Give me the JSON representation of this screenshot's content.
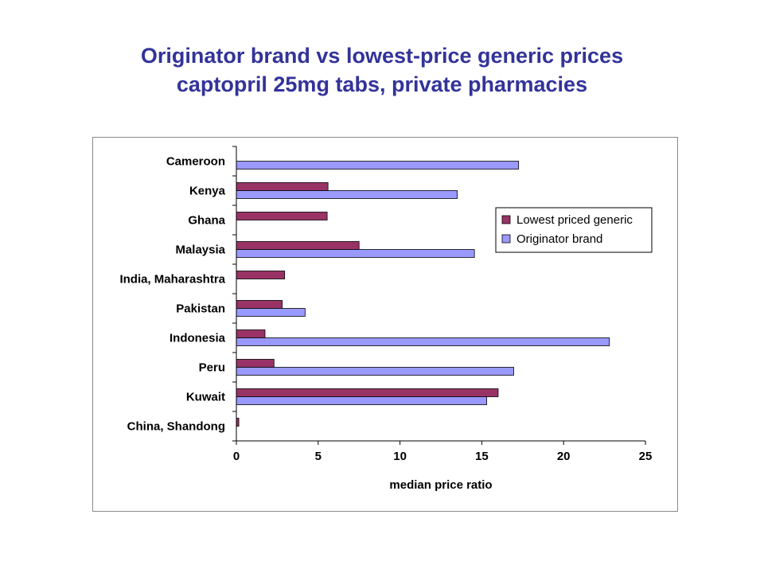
{
  "title_lines": [
    "Originator brand vs lowest-price generic prices",
    "captopril 25mg tabs, private pharmacies"
  ],
  "chart_data": {
    "type": "bar",
    "orientation": "horizontal",
    "title": "Originator brand vs lowest-price generic prices captopril 25mg tabs, private pharmacies",
    "xlabel": "median price ratio",
    "ylabel": "",
    "xlim": [
      0,
      25
    ],
    "xticks": [
      0,
      5,
      10,
      15,
      20,
      25
    ],
    "grid": false,
    "legend_position": "right",
    "categories": [
      "Cameroon",
      "Kenya",
      "Ghana",
      "Malaysia",
      "India, Maharashtra",
      "Pakistan",
      "Indonesia",
      "Peru",
      "Kuwait",
      "China, Shandong"
    ],
    "series": [
      {
        "name": "Lowest priced generic",
        "color": "#993366",
        "values": [
          null,
          5.6,
          5.55,
          7.5,
          2.95,
          2.8,
          1.75,
          2.3,
          16.0,
          0.15
        ]
      },
      {
        "name": "Originator brand",
        "color": "#9999ff",
        "values": [
          17.25,
          13.5,
          null,
          14.55,
          null,
          4.2,
          22.8,
          16.95,
          15.3,
          null
        ]
      }
    ]
  }
}
